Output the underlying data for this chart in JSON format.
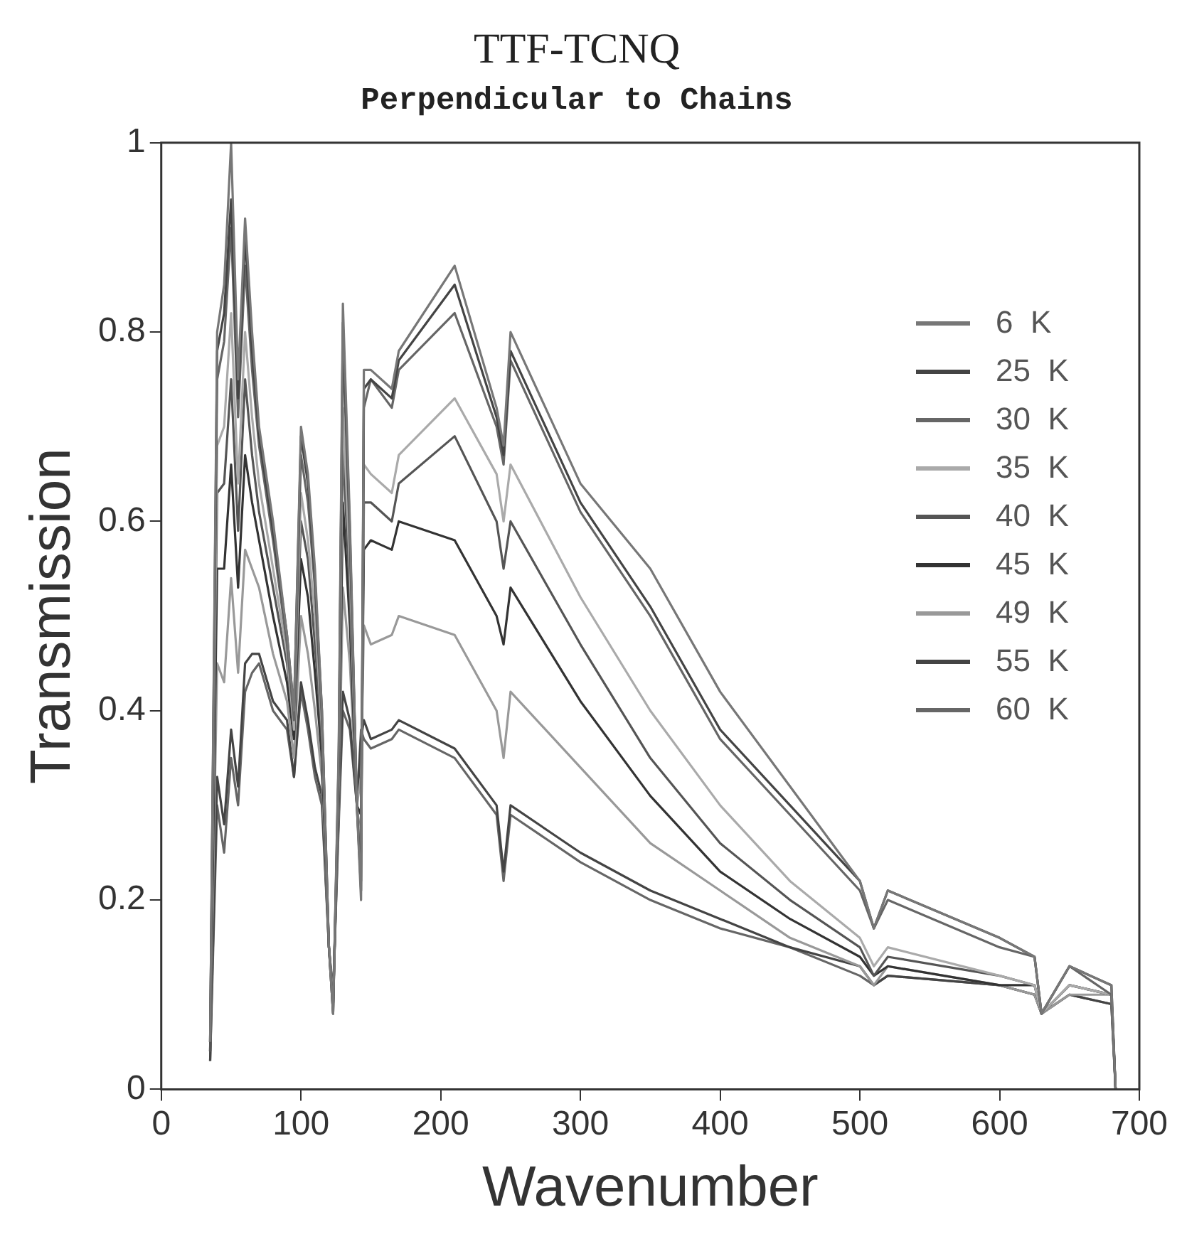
{
  "chart_data": {
    "type": "line",
    "title": "TTF-TCNQ",
    "subtitle": "Perpendicular to Chains",
    "xlabel": "Wavenumber",
    "ylabel": "Transmission",
    "x": [
      35,
      40,
      45,
      50,
      55,
      60,
      65,
      70,
      80,
      90,
      95,
      100,
      105,
      110,
      115,
      120,
      123,
      127,
      130,
      135,
      140,
      143,
      145,
      150,
      165,
      170,
      210,
      240,
      245,
      250,
      300,
      350,
      400,
      450,
      500,
      510,
      520,
      600,
      625,
      630,
      650,
      680,
      683
    ],
    "xlim": [
      0,
      700
    ],
    "xticks": [
      0,
      100,
      200,
      300,
      400,
      500,
      600,
      700
    ],
    "ylim": [
      0,
      1
    ],
    "yticks": [
      0,
      0.2,
      0.4,
      0.6,
      0.8,
      1
    ],
    "grid": false,
    "legend": "top right",
    "marker": "none",
    "line_style": "solid",
    "series": [
      {
        "name": "6  K",
        "color": "#777777",
        "values": [
          0.05,
          0.8,
          0.85,
          1.0,
          0.75,
          0.92,
          0.8,
          0.7,
          0.6,
          0.48,
          0.4,
          0.7,
          0.65,
          0.55,
          0.4,
          0.15,
          0.08,
          0.36,
          0.83,
          0.6,
          0.3,
          0.2,
          0.76,
          0.76,
          0.74,
          0.78,
          0.87,
          0.72,
          0.68,
          0.8,
          0.64,
          0.55,
          0.42,
          0.32,
          0.22,
          0.17,
          0.21,
          0.16,
          0.14,
          0.08,
          0.13,
          0.11,
          0.0
        ]
      },
      {
        "name": "25  K",
        "color": "#444444",
        "values": [
          0.05,
          0.78,
          0.82,
          0.94,
          0.73,
          0.9,
          0.78,
          0.69,
          0.59,
          0.48,
          0.4,
          0.69,
          0.64,
          0.54,
          0.4,
          0.15,
          0.08,
          0.35,
          0.81,
          0.59,
          0.3,
          0.21,
          0.74,
          0.75,
          0.73,
          0.77,
          0.85,
          0.71,
          0.67,
          0.78,
          0.62,
          0.51,
          0.38,
          0.3,
          0.22,
          0.17,
          0.21,
          0.16,
          0.14,
          0.08,
          0.13,
          0.11,
          0.0
        ]
      },
      {
        "name": "30  K",
        "color": "#666666",
        "values": [
          0.05,
          0.75,
          0.79,
          0.91,
          0.71,
          0.87,
          0.76,
          0.68,
          0.58,
          0.47,
          0.39,
          0.67,
          0.62,
          0.53,
          0.39,
          0.15,
          0.08,
          0.34,
          0.79,
          0.58,
          0.3,
          0.22,
          0.72,
          0.75,
          0.72,
          0.76,
          0.82,
          0.7,
          0.66,
          0.77,
          0.61,
          0.5,
          0.37,
          0.29,
          0.21,
          0.17,
          0.2,
          0.15,
          0.14,
          0.08,
          0.13,
          0.1,
          0.0
        ]
      },
      {
        "name": "35  K",
        "color": "#aaaaaa",
        "values": [
          0.05,
          0.68,
          0.7,
          0.82,
          0.64,
          0.8,
          0.71,
          0.64,
          0.55,
          0.46,
          0.38,
          0.63,
          0.58,
          0.5,
          0.38,
          0.15,
          0.09,
          0.33,
          0.72,
          0.55,
          0.3,
          0.25,
          0.66,
          0.65,
          0.63,
          0.67,
          0.73,
          0.65,
          0.6,
          0.66,
          0.52,
          0.4,
          0.3,
          0.22,
          0.16,
          0.13,
          0.15,
          0.12,
          0.11,
          0.08,
          0.11,
          0.1,
          0.0
        ]
      },
      {
        "name": "40  K",
        "color": "#555555",
        "values": [
          0.04,
          0.63,
          0.64,
          0.75,
          0.59,
          0.75,
          0.67,
          0.61,
          0.53,
          0.45,
          0.38,
          0.6,
          0.56,
          0.47,
          0.37,
          0.15,
          0.09,
          0.32,
          0.68,
          0.52,
          0.3,
          0.26,
          0.62,
          0.62,
          0.6,
          0.64,
          0.69,
          0.6,
          0.55,
          0.6,
          0.47,
          0.35,
          0.26,
          0.2,
          0.15,
          0.12,
          0.14,
          0.12,
          0.11,
          0.08,
          0.11,
          0.1,
          0.0
        ]
      },
      {
        "name": "45  K",
        "color": "#333333",
        "values": [
          0.04,
          0.55,
          0.55,
          0.66,
          0.53,
          0.67,
          0.62,
          0.58,
          0.5,
          0.43,
          0.37,
          0.56,
          0.52,
          0.44,
          0.35,
          0.15,
          0.09,
          0.31,
          0.62,
          0.49,
          0.3,
          0.29,
          0.57,
          0.58,
          0.57,
          0.6,
          0.58,
          0.5,
          0.47,
          0.53,
          0.41,
          0.31,
          0.23,
          0.18,
          0.14,
          0.12,
          0.13,
          0.11,
          0.11,
          0.08,
          0.11,
          0.1,
          0.0
        ]
      },
      {
        "name": "49  K",
        "color": "#999999",
        "values": [
          0.04,
          0.45,
          0.43,
          0.54,
          0.44,
          0.57,
          0.55,
          0.53,
          0.46,
          0.41,
          0.35,
          0.5,
          0.46,
          0.4,
          0.33,
          0.15,
          0.09,
          0.3,
          0.53,
          0.45,
          0.3,
          0.33,
          0.49,
          0.47,
          0.48,
          0.5,
          0.48,
          0.4,
          0.35,
          0.42,
          0.34,
          0.26,
          0.21,
          0.16,
          0.13,
          0.11,
          0.13,
          0.11,
          0.1,
          0.08,
          0.1,
          0.1,
          0.0
        ]
      },
      {
        "name": "55  K",
        "color": "#444444",
        "values": [
          0.03,
          0.33,
          0.28,
          0.38,
          0.32,
          0.45,
          0.46,
          0.46,
          0.41,
          0.39,
          0.33,
          0.43,
          0.39,
          0.34,
          0.31,
          0.15,
          0.1,
          0.29,
          0.42,
          0.39,
          0.3,
          0.37,
          0.39,
          0.37,
          0.38,
          0.39,
          0.36,
          0.3,
          0.23,
          0.3,
          0.25,
          0.21,
          0.18,
          0.15,
          0.13,
          0.11,
          0.12,
          0.11,
          0.1,
          0.08,
          0.1,
          0.09,
          0.0
        ]
      },
      {
        "name": "60  K",
        "color": "#666666",
        "values": [
          0.03,
          0.3,
          0.25,
          0.35,
          0.3,
          0.42,
          0.44,
          0.45,
          0.4,
          0.38,
          0.33,
          0.42,
          0.38,
          0.33,
          0.3,
          0.15,
          0.1,
          0.28,
          0.4,
          0.38,
          0.3,
          0.38,
          0.37,
          0.36,
          0.37,
          0.38,
          0.35,
          0.29,
          0.22,
          0.29,
          0.24,
          0.2,
          0.17,
          0.15,
          0.12,
          0.11,
          0.12,
          0.11,
          0.1,
          0.08,
          0.1,
          0.09,
          0.0
        ]
      }
    ]
  }
}
